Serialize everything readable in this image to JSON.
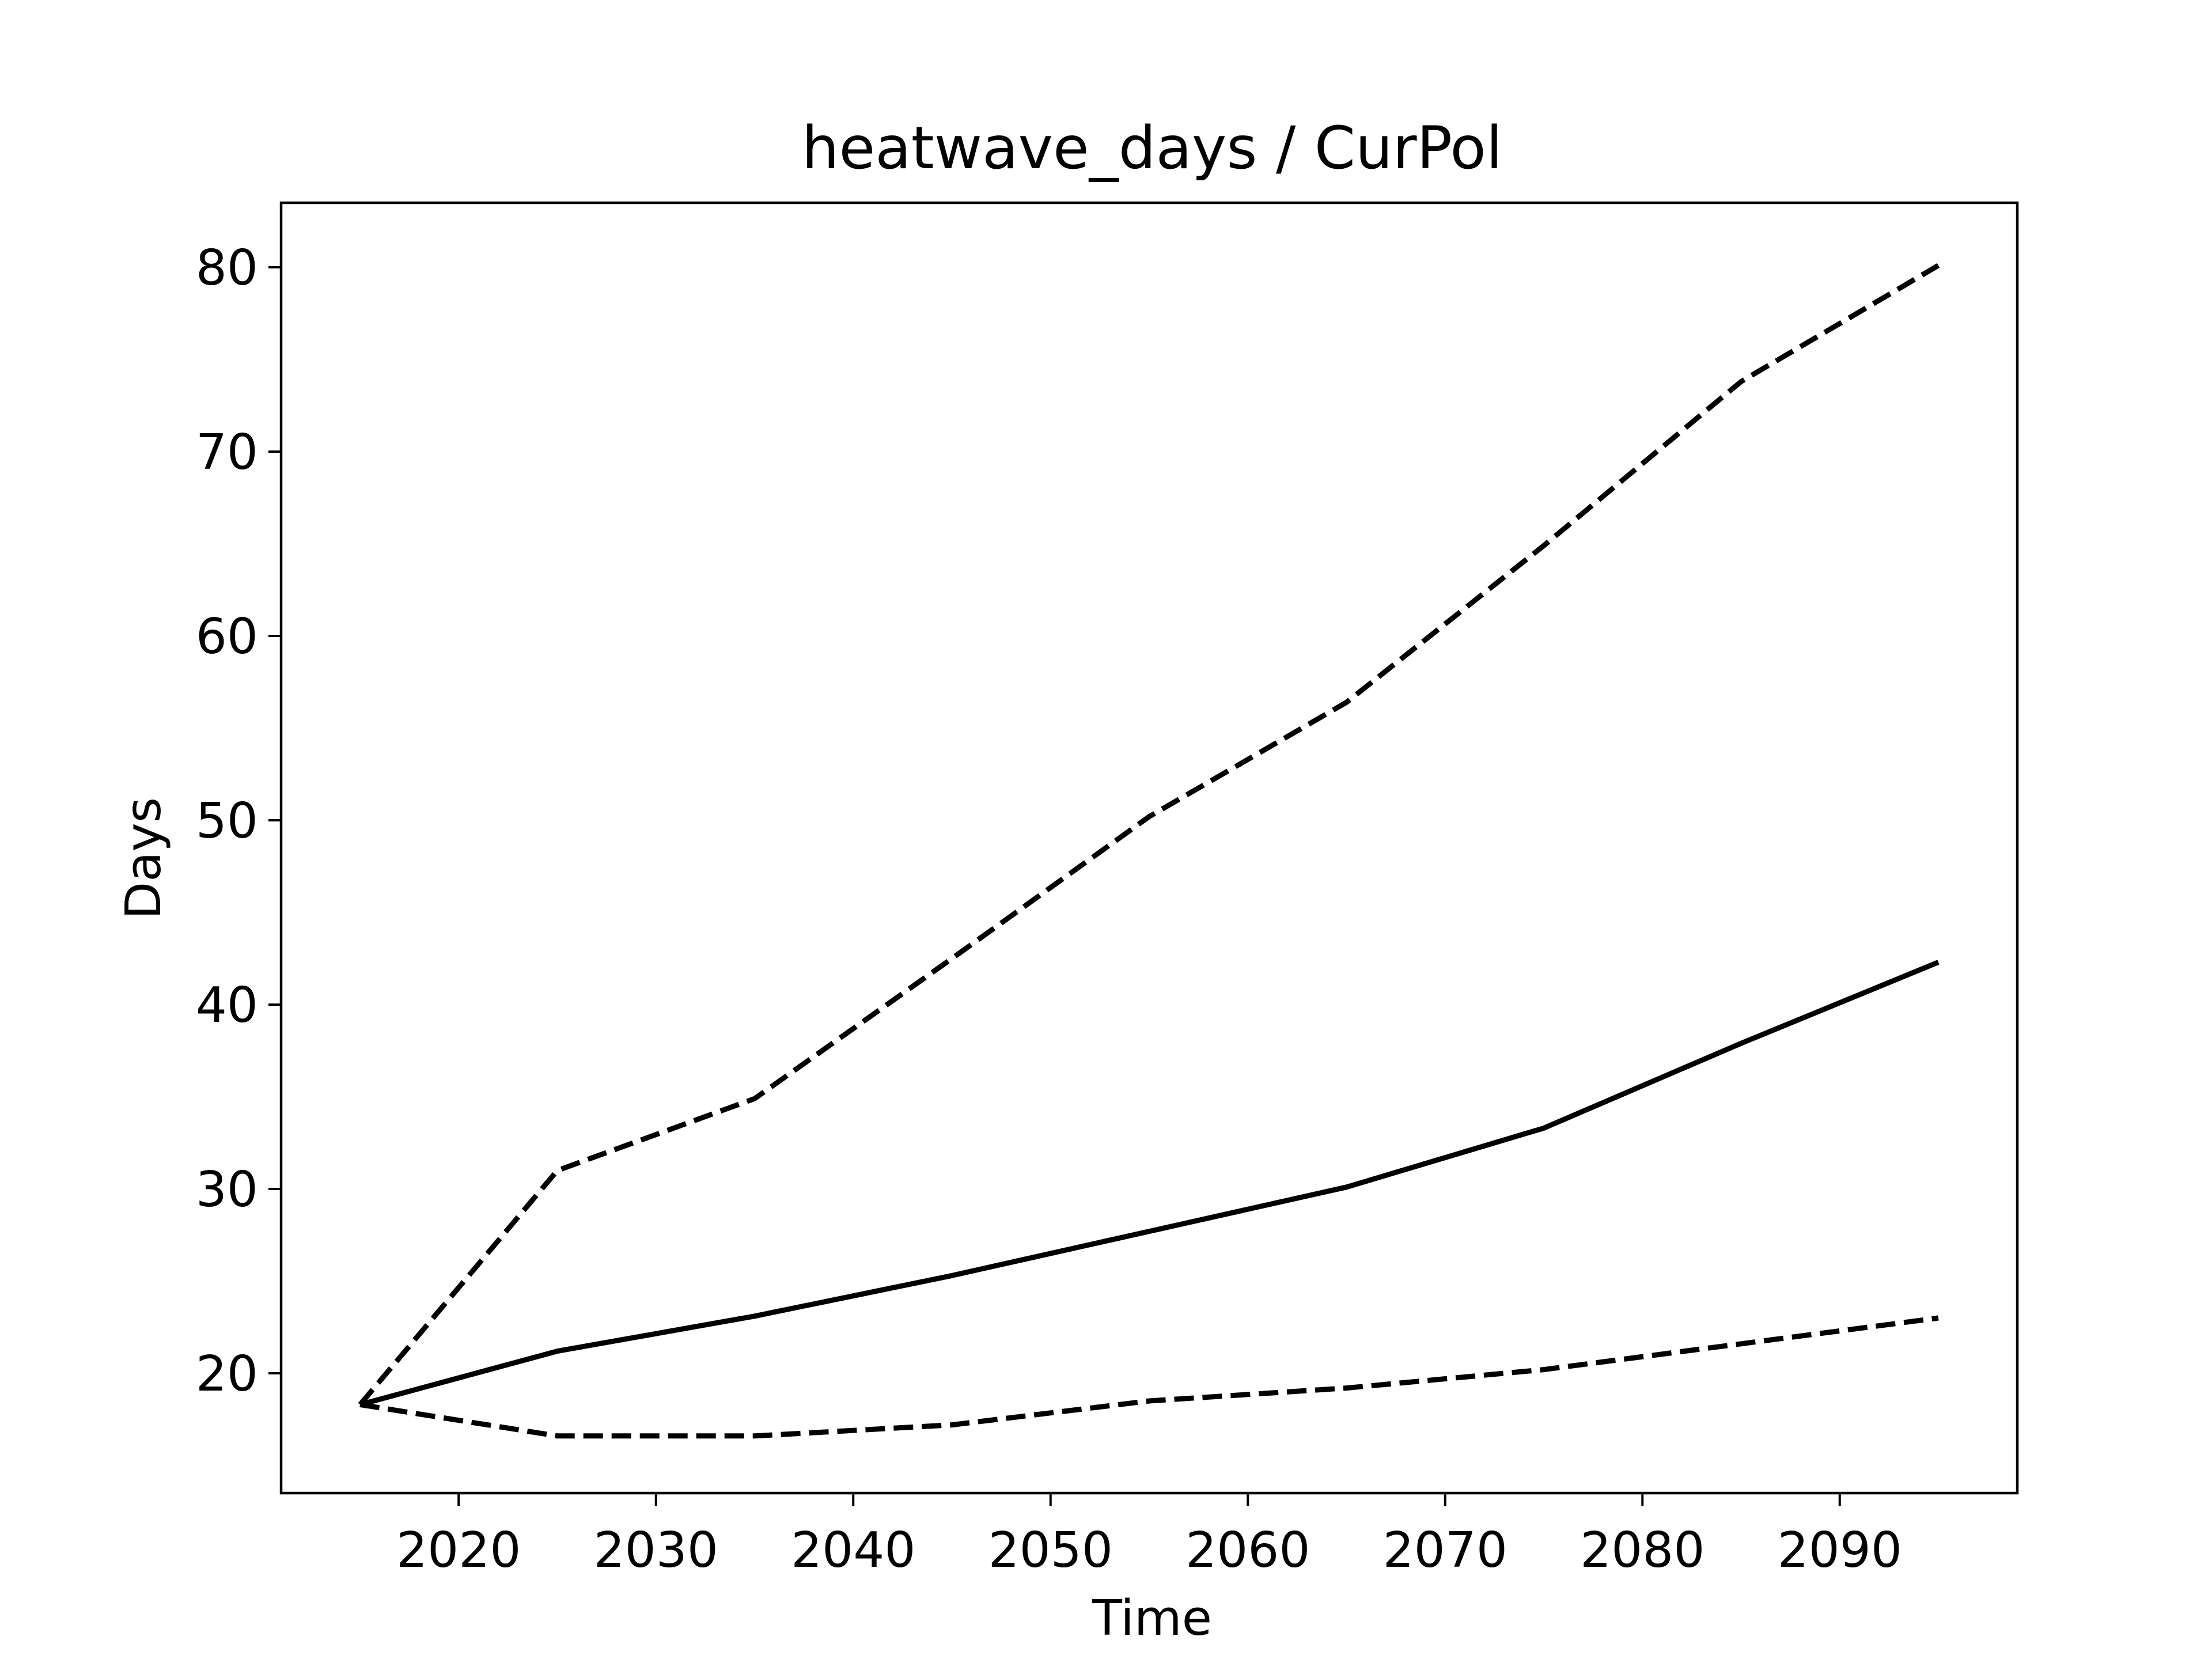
{
  "chart_data": {
    "type": "line",
    "title": "heatwave_days / CurPol",
    "xlabel": "Time",
    "ylabel": "Days",
    "xlim": [
      2011,
      2099
    ],
    "ylim": [
      13.5,
      83.5
    ],
    "xticks": [
      2020,
      2030,
      2040,
      2050,
      2060,
      2070,
      2080,
      2090
    ],
    "xtick_labels": [
      "2020",
      "2030",
      "2040",
      "2050",
      "2060",
      "2070",
      "2080",
      "2090"
    ],
    "yticks": [
      20,
      30,
      40,
      50,
      60,
      70,
      80
    ],
    "ytick_labels": [
      "20",
      "30",
      "40",
      "50",
      "60",
      "70",
      "80"
    ],
    "grid": false,
    "legend": "none",
    "series": [
      {
        "style": "solid",
        "color": "#000000",
        "x": [
          2015,
          2025,
          2035,
          2045,
          2055,
          2065,
          2075,
          2085,
          2095
        ],
        "y": [
          18.3,
          21.2,
          23.1,
          25.3,
          27.7,
          30.1,
          33.3,
          37.9,
          42.3
        ]
      },
      {
        "style": "dashed",
        "color": "#000000",
        "x": [
          2015,
          2025,
          2035,
          2045,
          2055,
          2065,
          2075,
          2085,
          2095
        ],
        "y": [
          18.3,
          31.0,
          34.9,
          42.5,
          50.2,
          56.4,
          64.9,
          73.8,
          80.1
        ]
      },
      {
        "style": "dashed",
        "color": "#000000",
        "x": [
          2015,
          2025,
          2035,
          2045,
          2055,
          2065,
          2075,
          2085,
          2095
        ],
        "y": [
          18.3,
          16.6,
          16.6,
          17.2,
          18.5,
          19.2,
          20.2,
          21.6,
          23.0
        ]
      }
    ]
  }
}
